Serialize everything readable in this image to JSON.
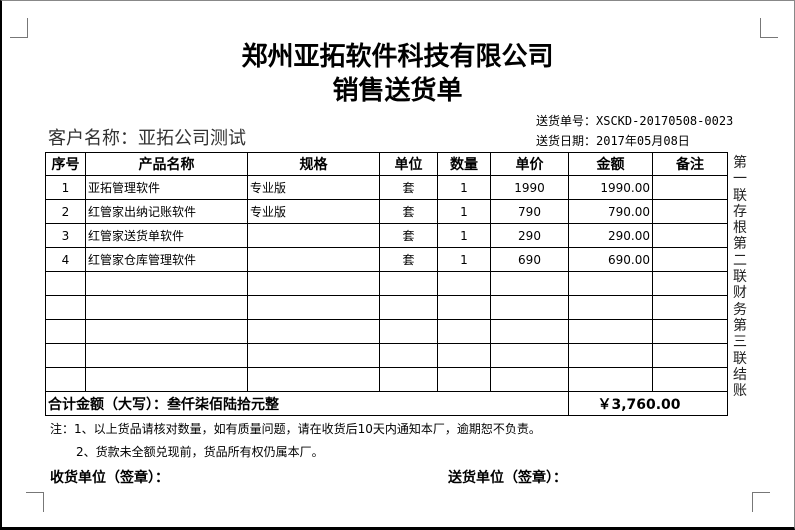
{
  "title": "郑州亚拓软件科技有限公司",
  "subtitle": "销售送货单",
  "customer": "客户名称：亚拓公司测试",
  "order_no": "送货单号：XSCKD-20170508-0023",
  "date": "送货日期：2017年05月08日",
  "headers": [
    "序号",
    "产品名称",
    "规格",
    "单位",
    "数量",
    "单价",
    "金额",
    "备注"
  ],
  "rows": [
    [
      "1",
      "亚拓管理软件",
      "专业版",
      "套",
      "1",
      "1990",
      "1990.00",
      ""
    ],
    [
      "2",
      "红管家出纳记账软件",
      "专业版",
      "套",
      "1",
      "790",
      "790.00",
      ""
    ],
    [
      "3",
      "红管家送货单软件",
      "",
      "套",
      "1",
      "290",
      "290.00",
      ""
    ],
    [
      "4",
      "红管家仓库管理软件",
      "",
      "套",
      "1",
      "690",
      "690.00",
      ""
    ]
  ],
  "empty_rows": 5,
  "total_label": "合计金额（大写）：叁仟柒佰陆拾元整",
  "total_value": "￥3,760.00",
  "side_text": "第一联存根 第二联财务 第三联结账",
  "notes": [
    "注：1、以上货品请核对数量，如有质量问题，请在收货后10天内通知本厂，逾期恕不负责。",
    "2、货款未全额兑现前，货品所有权仍属本厂。"
  ],
  "receiver": "收货单位（签章）：",
  "sender": "送货单位（签章）："
}
